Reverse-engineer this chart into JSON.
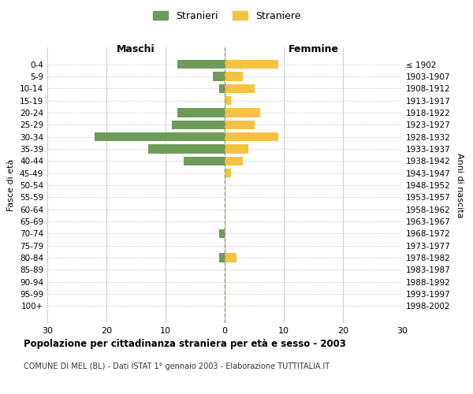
{
  "age_groups": [
    "0-4",
    "5-9",
    "10-14",
    "15-19",
    "20-24",
    "25-29",
    "30-34",
    "35-39",
    "40-44",
    "45-49",
    "50-54",
    "55-59",
    "60-64",
    "65-69",
    "70-74",
    "75-79",
    "80-84",
    "85-89",
    "90-94",
    "95-99",
    "100+"
  ],
  "birth_years": [
    "1998-2002",
    "1993-1997",
    "1988-1992",
    "1983-1987",
    "1978-1982",
    "1973-1977",
    "1968-1972",
    "1963-1967",
    "1958-1962",
    "1953-1957",
    "1948-1952",
    "1943-1947",
    "1938-1942",
    "1933-1937",
    "1928-1932",
    "1923-1927",
    "1918-1922",
    "1913-1917",
    "1908-1912",
    "1903-1907",
    "≤ 1902"
  ],
  "males": [
    8,
    2,
    1,
    0,
    8,
    9,
    22,
    13,
    7,
    0,
    0,
    0,
    0,
    0,
    1,
    0,
    1,
    0,
    0,
    0,
    0
  ],
  "females": [
    9,
    3,
    5,
    1,
    6,
    5,
    9,
    4,
    3,
    1,
    0,
    0,
    0,
    0,
    0,
    0,
    2,
    0,
    0,
    0,
    0
  ],
  "male_color": "#6d9b5a",
  "female_color": "#f5c242",
  "title": "Popolazione per cittadinanza straniera per età e sesso - 2003",
  "subtitle": "COMUNE DI MEL (BL) - Dati ISTAT 1° gennaio 2003 - Elaborazione TUTTITALIA.IT",
  "ylabel_left": "Fasce di età",
  "ylabel_right": "Anni di nascita",
  "xlabel_left": "Maschi",
  "xlabel_right": "Femmine",
  "legend_male": "Stranieri",
  "legend_female": "Straniere",
  "xlim": 30,
  "background_color": "#ffffff",
  "grid_color": "#cccccc",
  "dashed_line_color": "#999966"
}
